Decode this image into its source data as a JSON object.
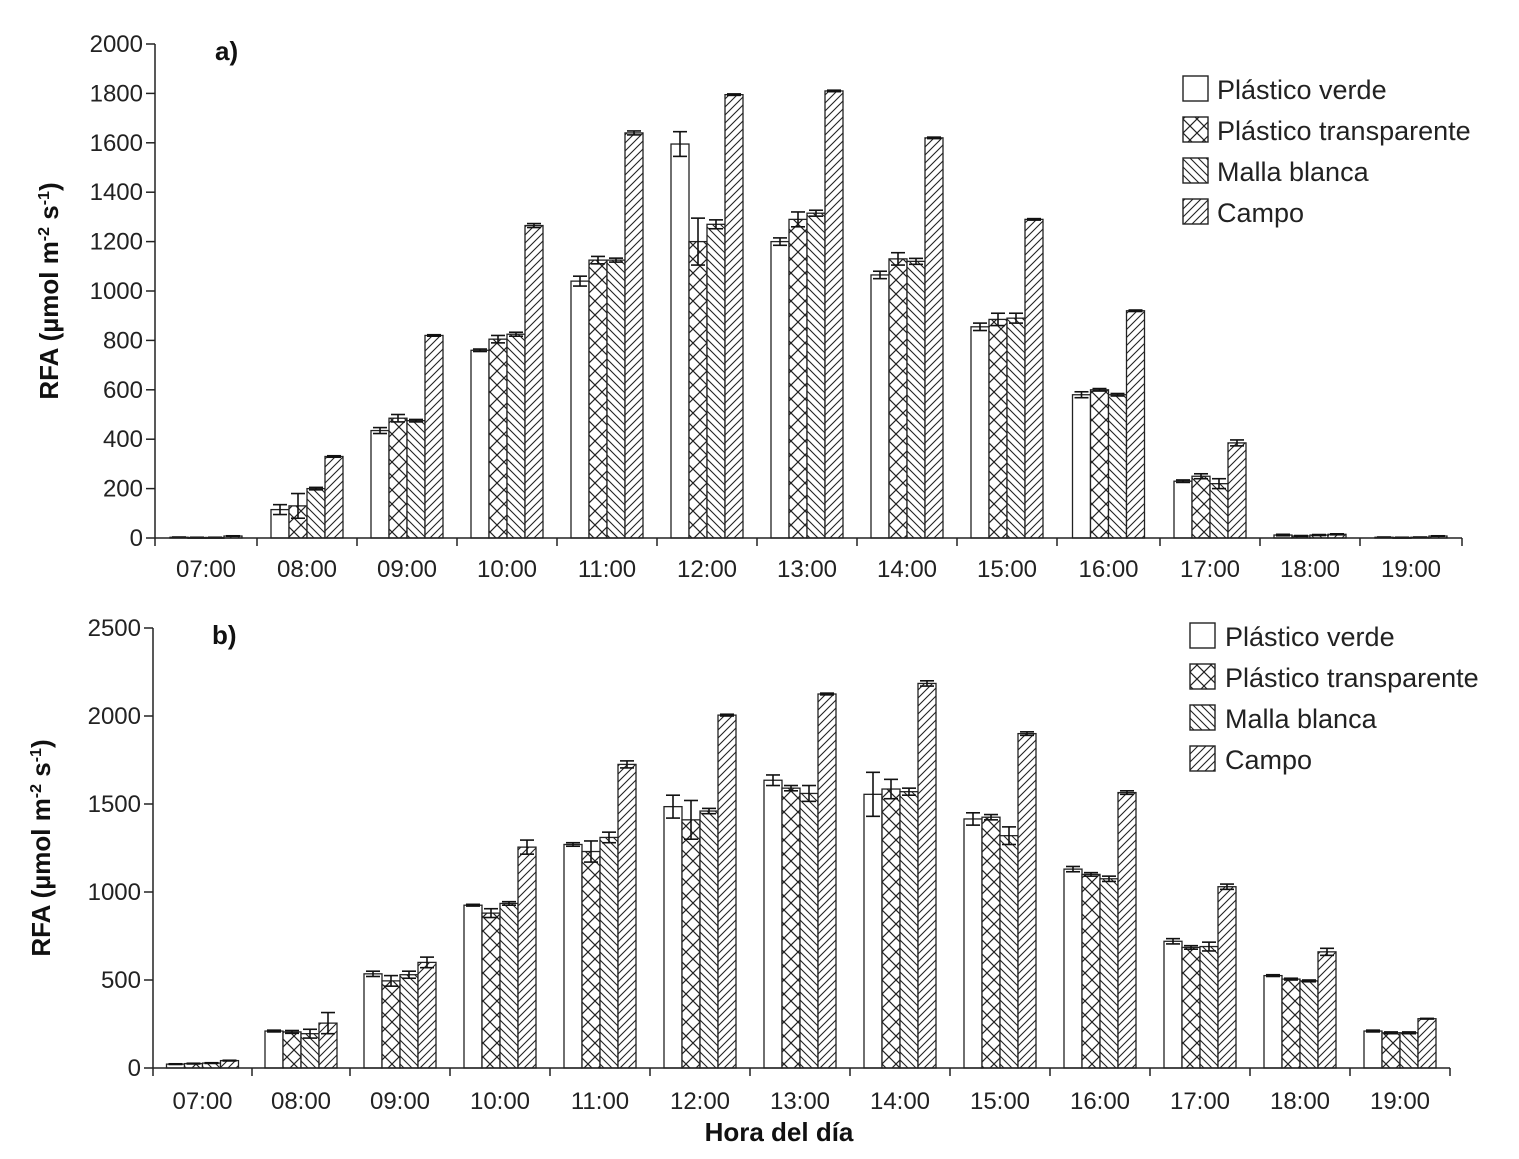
{
  "figure": {
    "xlabel": "Hora del día",
    "hatch_colors": {
      "line": "#222222",
      "fill": "#ffffff"
    }
  },
  "chart_data": [
    {
      "type": "bar",
      "panel_label": "a)",
      "ylabel_main": "RFA (µmol m",
      "ylabel_sup1": "-2",
      "ylabel_mid": " s",
      "ylabel_sup2": "-1",
      "ylabel_end": ")",
      "ylim": [
        0,
        2000
      ],
      "yticks": [
        "0",
        "200",
        "400",
        "600",
        "800",
        "1000",
        "1200",
        "1400",
        "1600",
        "1800",
        "2000"
      ],
      "legend_position": "top-right",
      "categories": [
        "07:00",
        "08:00",
        "09:00",
        "10:00",
        "11:00",
        "12:00",
        "13:00",
        "14:00",
        "15:00",
        "16:00",
        "17:00",
        "18:00",
        "19:00"
      ],
      "series": [
        {
          "name": "Plástico verde",
          "pattern": "none",
          "values": [
            3,
            115,
            435,
            760,
            1040,
            1595,
            1200,
            1065,
            855,
            580,
            230,
            12,
            3
          ],
          "errors": [
            1,
            20,
            12,
            5,
            20,
            50,
            15,
            15,
            15,
            12,
            5,
            3,
            1
          ]
        },
        {
          "name": "Plástico transparente",
          "pattern": "cross",
          "values": [
            2,
            130,
            485,
            805,
            1125,
            1200,
            1290,
            1130,
            885,
            600,
            250,
            8,
            2
          ],
          "errors": [
            1,
            50,
            15,
            15,
            15,
            95,
            30,
            25,
            25,
            5,
            10,
            2,
            1
          ]
        },
        {
          "name": "Malla blanca",
          "pattern": "back",
          "values": [
            2,
            200,
            475,
            825,
            1125,
            1270,
            1315,
            1120,
            890,
            580,
            220,
            12,
            3
          ],
          "errors": [
            1,
            5,
            5,
            8,
            8,
            18,
            12,
            12,
            20,
            5,
            20,
            2,
            1
          ]
        },
        {
          "name": "Campo",
          "pattern": "forward",
          "values": [
            8,
            330,
            820,
            1265,
            1640,
            1795,
            1810,
            1620,
            1290,
            920,
            385,
            15,
            8
          ],
          "errors": [
            1,
            3,
            3,
            8,
            8,
            3,
            3,
            3,
            3,
            3,
            12,
            2,
            1
          ]
        }
      ]
    },
    {
      "type": "bar",
      "panel_label": "b)",
      "ylabel_main": "RFA (µmol m",
      "ylabel_sup1": "-2",
      "ylabel_mid": " s",
      "ylabel_sup2": "-1",
      "ylabel_end": ")",
      "ylim": [
        0,
        2500
      ],
      "yticks": [
        "0",
        "500",
        "1000",
        "1500",
        "2000",
        "2500"
      ],
      "legend_position": "top-right",
      "categories": [
        "07:00",
        "08:00",
        "09:00",
        "10:00",
        "11:00",
        "12:00",
        "13:00",
        "14:00",
        "15:00",
        "16:00",
        "17:00",
        "18:00",
        "19:00"
      ],
      "series": [
        {
          "name": "Plástico verde",
          "pattern": "none",
          "values": [
            22,
            210,
            535,
            925,
            1270,
            1485,
            1635,
            1555,
            1415,
            1130,
            720,
            525,
            210
          ],
          "errors": [
            2,
            5,
            15,
            5,
            10,
            65,
            30,
            125,
            35,
            15,
            15,
            5,
            5
          ]
        },
        {
          "name": "Plástico transparente",
          "pattern": "cross",
          "values": [
            25,
            205,
            495,
            880,
            1230,
            1410,
            1590,
            1585,
            1425,
            1100,
            685,
            505,
            200
          ],
          "errors": [
            2,
            8,
            30,
            25,
            60,
            110,
            15,
            55,
            15,
            10,
            10,
            5,
            5
          ]
        },
        {
          "name": "Malla blanca",
          "pattern": "back",
          "values": [
            28,
            195,
            530,
            935,
            1310,
            1460,
            1560,
            1570,
            1320,
            1075,
            690,
            495,
            200
          ],
          "errors": [
            2,
            25,
            20,
            10,
            30,
            15,
            45,
            20,
            50,
            15,
            25,
            5,
            5
          ]
        },
        {
          "name": "Campo",
          "pattern": "forward",
          "values": [
            42,
            255,
            600,
            1255,
            1725,
            2005,
            2125,
            2185,
            1900,
            1565,
            1030,
            660,
            280
          ],
          "errors": [
            2,
            60,
            30,
            40,
            20,
            5,
            5,
            15,
            10,
            10,
            15,
            20,
            2
          ]
        }
      ]
    }
  ]
}
